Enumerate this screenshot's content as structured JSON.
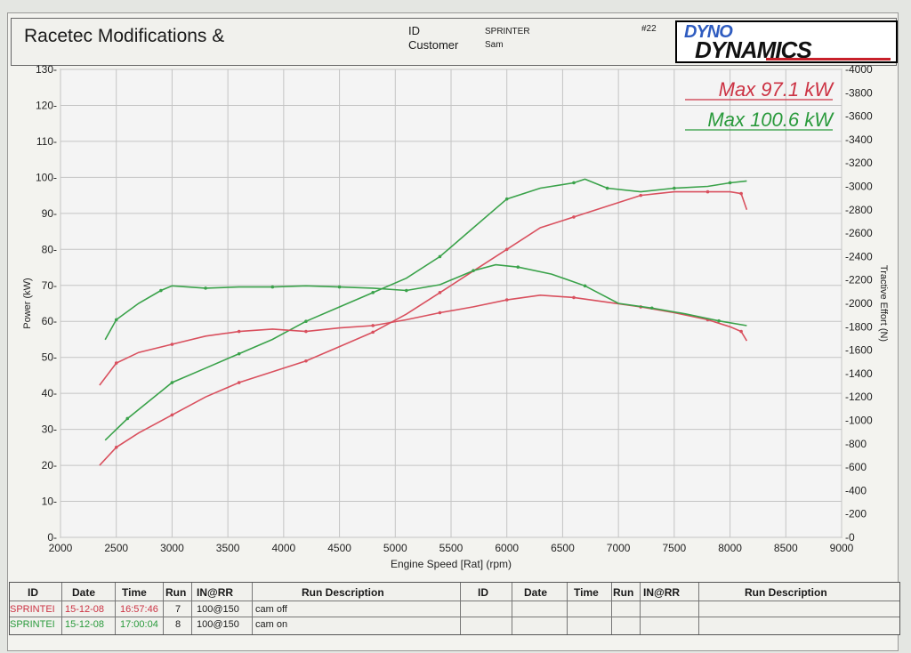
{
  "header": {
    "title": "Racetec Modifications &",
    "id_label": "ID",
    "customer_label": "Customer",
    "id_value": "SPRINTER",
    "customer_value": "Sam",
    "sheet_no": "#22",
    "logo_line1": "DYNO",
    "logo_line2": "DYNAMICS"
  },
  "colors": {
    "run1": "#d9505e",
    "run2": "#3aa24a",
    "grid": "#c4c4c4",
    "plot_bg": "#f4f4f4"
  },
  "chart_data": {
    "type": "line",
    "title": "",
    "xlabel": "Engine Speed [Rat] (rpm)",
    "ylabel": "Power (kW)",
    "y2label": "Tractive Effort (N)",
    "xlim": [
      2000,
      9000
    ],
    "ylim": [
      0,
      130
    ],
    "y2lim": [
      0,
      4000
    ],
    "x_ticks": [
      2000,
      2500,
      3000,
      3500,
      4000,
      4500,
      5000,
      5500,
      6000,
      6500,
      7000,
      7500,
      8000,
      8500,
      9000
    ],
    "y_ticks": [
      0,
      10,
      20,
      30,
      40,
      50,
      60,
      70,
      80,
      90,
      100,
      110,
      120,
      130
    ],
    "y2_ticks": [
      0,
      200,
      400,
      600,
      800,
      1000,
      1200,
      1400,
      1600,
      1800,
      2000,
      2200,
      2400,
      2600,
      2800,
      3000,
      3200,
      3400,
      3600,
      3800,
      4000
    ],
    "grid": true,
    "annotations": [
      {
        "text": "Max 97.1 kW",
        "color": "#cc3344"
      },
      {
        "text": "Max 100.6 kW",
        "color": "#2a9a3c"
      }
    ],
    "series": [
      {
        "axis": "power",
        "color": "#d9505e",
        "x": [
          2350,
          2500,
          2700,
          3000,
          3300,
          3600,
          3900,
          4200,
          4500,
          4800,
          5100,
          5400,
          5700,
          6000,
          6300,
          6600,
          6900,
          7200,
          7500,
          7800,
          8000,
          8100,
          8150
        ],
        "y": [
          20,
          25,
          29,
          34,
          39,
          43,
          46,
          49,
          53,
          57,
          62,
          68,
          74,
          80,
          86,
          89,
          92,
          95,
          96,
          96,
          96,
          95.5,
          91
        ]
      },
      {
        "axis": "power",
        "color": "#3aa24a",
        "x": [
          2400,
          2600,
          2800,
          3000,
          3300,
          3600,
          3900,
          4200,
          4500,
          4800,
          5100,
          5400,
          5700,
          6000,
          6300,
          6600,
          6700,
          6900,
          7200,
          7500,
          7800,
          8000,
          8150
        ],
        "y": [
          27,
          33,
          38,
          43,
          47,
          51,
          55,
          60,
          64,
          68,
          72,
          78,
          86,
          94,
          97,
          98.5,
          99.5,
          97,
          96,
          97,
          97.5,
          98.5,
          99
        ]
      },
      {
        "axis": "tractive",
        "color": "#d9505e",
        "x": [
          2350,
          2500,
          2700,
          3000,
          3300,
          3600,
          3900,
          4200,
          4500,
          4800,
          5100,
          5400,
          5700,
          6000,
          6300,
          6600,
          6900,
          7200,
          7500,
          7800,
          8000,
          8100,
          8150
        ],
        "y": [
          1300,
          1490,
          1580,
          1650,
          1720,
          1760,
          1780,
          1760,
          1790,
          1810,
          1860,
          1920,
          1970,
          2030,
          2070,
          2050,
          2010,
          1970,
          1920,
          1860,
          1800,
          1760,
          1680
        ]
      },
      {
        "axis": "tractive",
        "color": "#3aa24a",
        "x": [
          2400,
          2500,
          2700,
          2900,
          3000,
          3300,
          3600,
          3900,
          4200,
          4500,
          4800,
          5100,
          5400,
          5700,
          5900,
          6100,
          6400,
          6700,
          7000,
          7300,
          7600,
          7900,
          8150
        ],
        "y": [
          1690,
          1860,
          2000,
          2110,
          2150,
          2130,
          2140,
          2140,
          2150,
          2140,
          2130,
          2110,
          2160,
          2280,
          2330,
          2310,
          2250,
          2150,
          2000,
          1960,
          1910,
          1850,
          1810
        ]
      }
    ]
  },
  "table": {
    "headers": [
      "ID",
      "Date",
      "Time",
      "Run",
      "IN@RR",
      "Run Description",
      "ID",
      "Date",
      "Time",
      "Run",
      "IN@RR",
      "Run Description"
    ],
    "rows": [
      {
        "id": "SPRINTEI",
        "date": "15-12-08",
        "time": "16:57:46",
        "run": "7",
        "inrr": "100@150",
        "desc": "cam off"
      },
      {
        "id": "SPRINTEI",
        "date": "15-12-08",
        "time": "17:00:04",
        "run": "8",
        "inrr": "100@150",
        "desc": "cam on"
      }
    ]
  }
}
